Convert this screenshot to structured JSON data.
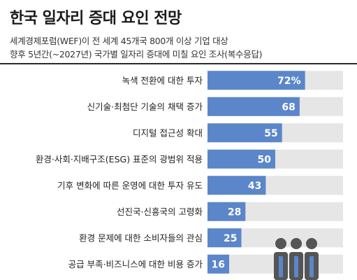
{
  "title": "한국 일자리 증대 요인 전망",
  "subtitle_line1": "세계경제포럼(WEF)이 전 세계 45개국 800개 이상 기업 대상",
  "subtitle_line2": "향후 5년간(~2027년) 국가별 일자리 증대에 미칠 요인 조사(복수응답)",
  "colors": {
    "bar": "#5b86c9",
    "track": "#e6e6e6",
    "value_text": "#ffffff",
    "rule": "#2b2b2b"
  },
  "chart_data": {
    "type": "bar",
    "orientation": "horizontal",
    "title": "한국 일자리 증대 요인 전망",
    "categories": [
      "녹색 전환에 대한 투자",
      "신기술·최첨단 기술의 채택 증가",
      "디지털 접근성 확대",
      "환경·사회·지배구조(ESG) 표준의 광범위 적용",
      "기후 변화에 따른 운영에 대한 투자 유도",
      "선진국·신흥국의 고령화",
      "환경 문제에 대한 소비자들의 관심",
      "공급 부족·비즈니스에 대한 비용 증가"
    ],
    "values": [
      72,
      68,
      55,
      50,
      43,
      28,
      25,
      16
    ],
    "value_labels": [
      "72%",
      "68",
      "55",
      "50",
      "43",
      "28",
      "25",
      "16"
    ],
    "unit": "%",
    "xlim": [
      0,
      100
    ]
  },
  "illustration": "people-group-icon"
}
